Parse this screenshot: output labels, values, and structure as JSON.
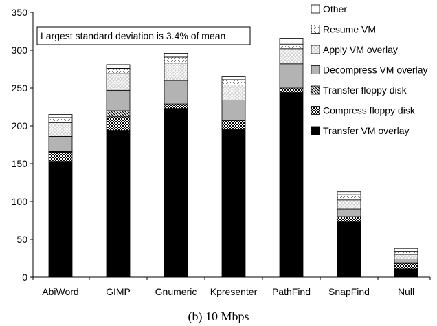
{
  "chart_data": {
    "type": "bar",
    "stacked": true,
    "caption": "(b) 10 Mbps",
    "annotation": "Largest standard deviation is  3.4% of mean",
    "ylim": [
      0,
      350
    ],
    "yticks": [
      0,
      50,
      100,
      150,
      200,
      250,
      300,
      350
    ],
    "grid": false,
    "legend_position": "top-right",
    "categories": [
      "AbiWord",
      "GIMP",
      "Gnumeric",
      "Kpresenter",
      "PathFind",
      "SnapFind",
      "Null"
    ],
    "series": [
      {
        "name": "Transfer VM overlay",
        "pattern": "solid-black",
        "values": [
          153,
          194,
          223,
          195,
          244,
          73,
          11
        ]
      },
      {
        "name": "Compress floppy disk",
        "pattern": "checker",
        "values": [
          12,
          18,
          6,
          12,
          6,
          7,
          7
        ]
      },
      {
        "name": "Transfer floppy disk",
        "pattern": "diagonal",
        "values": [
          1,
          8,
          0,
          0,
          0,
          0,
          1
        ]
      },
      {
        "name": "Decompress VM overlay",
        "pattern": "gray",
        "values": [
          20,
          27,
          31,
          27,
          32,
          10,
          5
        ]
      },
      {
        "name": "Apply VM overlay",
        "pattern": "crosshatch",
        "values": [
          18,
          22,
          23,
          20,
          20,
          12,
          6
        ]
      },
      {
        "name": "Resume VM",
        "pattern": "dots",
        "values": [
          7,
          7,
          8,
          7,
          6,
          7,
          4
        ]
      },
      {
        "name": "Other",
        "pattern": "white",
        "values": [
          4,
          5,
          5,
          4,
          8,
          4,
          4
        ]
      }
    ]
  }
}
